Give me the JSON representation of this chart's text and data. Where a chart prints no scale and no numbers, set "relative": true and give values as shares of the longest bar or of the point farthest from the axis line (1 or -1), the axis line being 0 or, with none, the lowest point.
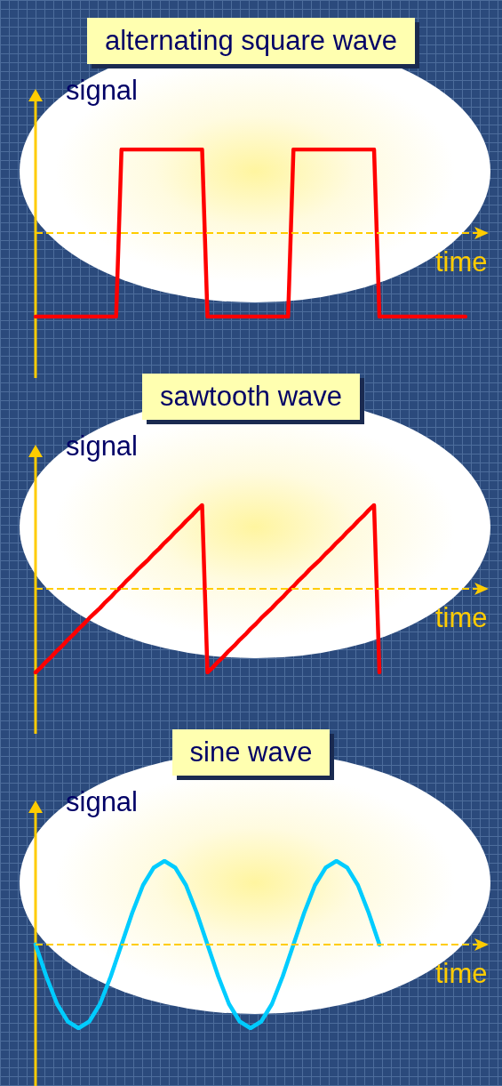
{
  "chart_data": [
    {
      "type": "line",
      "title": "alternating square wave",
      "ylabel": "signal",
      "xlabel": "time",
      "relative": true,
      "categories": [
        null,
        null,
        null,
        null,
        null,
        null,
        null,
        null,
        null,
        null,
        null,
        null,
        null,
        null,
        null,
        null,
        null,
        null,
        null,
        null,
        null,
        null,
        null,
        null,
        null,
        null,
        null,
        null,
        null,
        null,
        null,
        null,
        null,
        null,
        null,
        null,
        null,
        null,
        null,
        null,
        null,
        null,
        null,
        null,
        null,
        null,
        null,
        null,
        null,
        null,
        null,
        null,
        null,
        null,
        null,
        null,
        null,
        null,
        null,
        null,
        null,
        null,
        null,
        null,
        null,
        null,
        null,
        null,
        null,
        null,
        null,
        null,
        null,
        null,
        null,
        null,
        null,
        null,
        null,
        null,
        null,
        null,
        null,
        null,
        null
      ],
      "ref_lines": [
        {
          "axis": "y",
          "value": 0,
          "color": "#ffcc00",
          "line_style": "dashed"
        }
      ],
      "series": [
        {
          "color": "#ff0000",
          "values": [
            -1,
            -1,
            -1,
            -1,
            -1,
            -1,
            -1,
            -1,
            -1,
            -1,
            -1,
            -1,
            -1,
            -1,
            -1,
            -1,
            1,
            1,
            1,
            1,
            1,
            1,
            1,
            1,
            1,
            1,
            1,
            1,
            1,
            1,
            1,
            1,
            -1,
            -1,
            -1,
            -1,
            -1,
            -1,
            -1,
            -1,
            -1,
            -1,
            -1,
            -1,
            -1,
            -1,
            -1,
            -1,
            1,
            1,
            1,
            1,
            1,
            1,
            1,
            1,
            1,
            1,
            1,
            1,
            1,
            1,
            1,
            1,
            -1,
            -1,
            -1,
            -1,
            -1,
            -1,
            -1,
            -1,
            -1,
            -1,
            -1,
            -1,
            -1,
            -1,
            -1,
            -1,
            -1,
            null,
            null,
            null,
            null
          ]
        }
      ]
    },
    {
      "type": "line",
      "title": "sawtooth wave",
      "ylabel": "signal",
      "xlabel": "time",
      "relative": true,
      "categories": [
        null,
        null,
        null,
        null,
        null,
        null,
        null,
        null,
        null,
        null,
        null,
        null,
        null,
        null,
        null,
        null,
        null,
        null,
        null,
        null,
        null,
        null,
        null,
        null,
        null,
        null,
        null,
        null,
        null,
        null,
        null,
        null,
        null,
        null,
        null,
        null,
        null,
        null,
        null,
        null,
        null,
        null,
        null,
        null,
        null,
        null,
        null,
        null,
        null,
        null,
        null,
        null,
        null,
        null,
        null,
        null,
        null,
        null,
        null,
        null,
        null,
        null,
        null,
        null,
        null,
        null,
        null,
        null,
        null,
        null,
        null,
        null,
        null,
        null,
        null,
        null,
        null,
        null,
        null,
        null,
        null,
        null,
        null,
        null,
        null
      ],
      "ref_lines": [
        {
          "axis": "y",
          "value": 0,
          "color": "#ffcc00",
          "line_style": "dashed"
        }
      ],
      "series": [
        {
          "color": "#ff0000",
          "values": [
            -1,
            -0.94,
            -0.87,
            -0.81,
            -0.74,
            -0.68,
            -0.61,
            -0.55,
            -0.48,
            -0.42,
            -0.35,
            -0.29,
            -0.23,
            -0.16,
            -0.1,
            -0.03,
            0.03,
            0.1,
            0.16,
            0.23,
            0.29,
            0.35,
            0.42,
            0.48,
            0.55,
            0.61,
            0.68,
            0.74,
            0.81,
            0.87,
            0.94,
            1,
            -1,
            -0.94,
            -0.87,
            -0.81,
            -0.74,
            -0.68,
            -0.61,
            -0.55,
            -0.48,
            -0.42,
            -0.35,
            -0.29,
            -0.23,
            -0.16,
            -0.1,
            -0.03,
            0.03,
            0.1,
            0.16,
            0.23,
            0.29,
            0.35,
            0.42,
            0.48,
            0.55,
            0.61,
            0.68,
            0.74,
            0.81,
            0.87,
            0.94,
            1,
            -1,
            null,
            null,
            null,
            null,
            null,
            null,
            null,
            null,
            null,
            null,
            null,
            null,
            null,
            null,
            null,
            null,
            null,
            null,
            null,
            null
          ]
        }
      ]
    },
    {
      "type": "line",
      "title": "sine wave",
      "ylabel": "signal",
      "xlabel": "time",
      "relative": true,
      "categories": [
        null,
        null,
        null,
        null,
        null,
        null,
        null,
        null,
        null,
        null,
        null,
        null,
        null,
        null,
        null,
        null,
        null,
        null,
        null,
        null,
        null,
        null,
        null,
        null,
        null,
        null,
        null,
        null,
        null,
        null,
        null,
        null,
        null,
        null,
        null,
        null,
        null,
        null,
        null,
        null,
        null,
        null,
        null
      ],
      "ref_lines": [
        {
          "axis": "y",
          "value": 0,
          "color": "#ffcc00",
          "line_style": "dashed"
        }
      ],
      "series": [
        {
          "color": "#00ccff",
          "values": [
            0,
            -0.38,
            -0.71,
            -0.92,
            -1,
            -0.92,
            -0.71,
            -0.38,
            0,
            0.38,
            0.71,
            0.92,
            1,
            0.92,
            0.71,
            0.38,
            0,
            -0.38,
            -0.71,
            -0.92,
            -1,
            -0.92,
            -0.71,
            -0.38,
            0,
            0.38,
            0.71,
            0.92,
            1,
            0.92,
            0.71,
            0.38,
            0,
            null,
            null,
            null,
            null,
            null,
            null,
            null,
            null,
            null,
            null
          ]
        }
      ]
    }
  ]
}
